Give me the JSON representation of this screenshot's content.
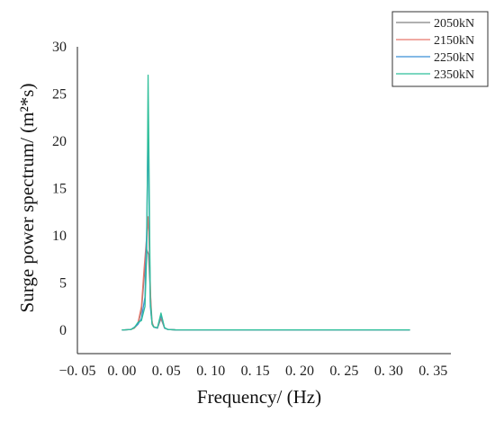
{
  "chart_data": {
    "type": "line",
    "title": "",
    "xlabel": "Frequency/ (Hz)",
    "ylabel": "Surge power spectrum/ (m²*s)",
    "xlim": [
      -0.05,
      0.37
    ],
    "ylim": [
      -2.5,
      30
    ],
    "xticks": [
      -0.05,
      0.0,
      0.05,
      0.1,
      0.15,
      0.2,
      0.25,
      0.3,
      0.35
    ],
    "xtick_labels": [
      "−0. 05",
      "0. 00",
      "0. 05",
      "0. 10",
      "0. 15",
      "0. 20",
      "0. 25",
      "0. 30",
      "0. 35"
    ],
    "yticks": [
      0,
      5,
      10,
      15,
      20,
      25,
      30
    ],
    "ytick_labels": [
      "0",
      "5",
      "10",
      "15",
      "20",
      "25",
      "30"
    ],
    "grid": false,
    "legend_position": "top-right",
    "series": [
      {
        "name": "2050kN",
        "color": "#808080",
        "x": [
          0.0,
          0.01,
          0.014,
          0.018,
          0.022,
          0.025,
          0.028,
          0.03,
          0.032,
          0.034,
          0.036,
          0.04,
          0.044,
          0.048,
          0.052,
          0.06,
          0.1,
          0.2,
          0.3,
          0.324
        ],
        "y": [
          0.0,
          0.05,
          0.2,
          0.6,
          2.0,
          5.5,
          8.5,
          8.0,
          4.0,
          0.8,
          0.3,
          0.2,
          1.2,
          0.2,
          0.05,
          0.02,
          0.01,
          0.01,
          0.01,
          0.01
        ]
      },
      {
        "name": "2150kN",
        "color": "#e8786c",
        "x": [
          0.0,
          0.01,
          0.014,
          0.018,
          0.022,
          0.025,
          0.028,
          0.0295,
          0.031,
          0.033,
          0.035,
          0.04,
          0.044,
          0.048,
          0.052,
          0.06,
          0.1,
          0.2,
          0.3,
          0.324
        ],
        "y": [
          0.0,
          0.05,
          0.2,
          0.7,
          2.5,
          6.5,
          10.0,
          12.0,
          8.0,
          1.5,
          0.4,
          0.2,
          1.4,
          0.2,
          0.05,
          0.02,
          0.01,
          0.01,
          0.01,
          0.01
        ]
      },
      {
        "name": "2250kN",
        "color": "#3b8fd8",
        "x": [
          0.0,
          0.01,
          0.014,
          0.018,
          0.022,
          0.026,
          0.028,
          0.0295,
          0.0305,
          0.032,
          0.034,
          0.036,
          0.04,
          0.044,
          0.048,
          0.052,
          0.06,
          0.1,
          0.2,
          0.3,
          0.324
        ],
        "y": [
          0.0,
          0.05,
          0.3,
          0.6,
          1.2,
          3.5,
          11.0,
          22.0,
          14.0,
          2.5,
          0.6,
          0.3,
          0.2,
          1.6,
          0.2,
          0.05,
          0.02,
          0.01,
          0.01,
          0.01,
          0.01
        ]
      },
      {
        "name": "2350kN",
        "color": "#2fbf9a",
        "x": [
          0.0,
          0.01,
          0.014,
          0.018,
          0.022,
          0.026,
          0.028,
          0.0295,
          0.0305,
          0.032,
          0.034,
          0.036,
          0.04,
          0.044,
          0.048,
          0.052,
          0.06,
          0.1,
          0.2,
          0.3,
          0.324
        ],
        "y": [
          0.0,
          0.05,
          0.25,
          0.8,
          1.0,
          2.5,
          8.0,
          27.0,
          18.0,
          3.0,
          0.6,
          0.3,
          0.25,
          1.8,
          0.25,
          0.05,
          0.02,
          0.01,
          0.01,
          0.01,
          0.01
        ]
      }
    ]
  }
}
